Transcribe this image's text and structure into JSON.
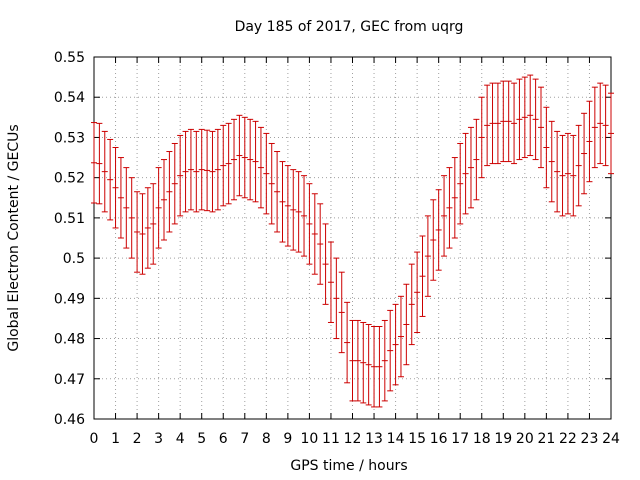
{
  "chart_data": {
    "type": "scatter",
    "title": "Day 185 of 2017, GEC from uqrg",
    "xlabel": "GPS time / hours",
    "ylabel": "Global Electron Content / GECUs",
    "xlim": [
      0,
      24
    ],
    "ylim": [
      0.46,
      0.55
    ],
    "x_ticks": [
      "0",
      "1",
      "2",
      "3",
      "4",
      "5",
      "6",
      "7",
      "8",
      "9",
      "10",
      "11",
      "12",
      "13",
      "14",
      "15",
      "16",
      "17",
      "18",
      "19",
      "20",
      "21",
      "22",
      "23",
      "24"
    ],
    "y_ticks": [
      "0.46",
      "0.47",
      "0.48",
      "0.49",
      "0.5",
      "0.51",
      "0.52",
      "0.53",
      "0.54",
      "0.55"
    ],
    "grid": true,
    "error_bar_halfwidth": 0.01,
    "series_color": "#cc0000",
    "series": [
      {
        "x": [
          0,
          0.25,
          0.5,
          0.75,
          1,
          1.25,
          1.5,
          1.75,
          2,
          2.25,
          2.5,
          2.75,
          3,
          3.25,
          3.5,
          3.75,
          4,
          4.25,
          4.5,
          4.75,
          5,
          5.25,
          5.5,
          5.75,
          6,
          6.25,
          6.5,
          6.75,
          7,
          7.25,
          7.5,
          7.75,
          8,
          8.25,
          8.5,
          8.75,
          9,
          9.25,
          9.5,
          9.75,
          10,
          10.25,
          10.5,
          10.75,
          11,
          11.25,
          11.5,
          11.75,
          12,
          12.25,
          12.5,
          12.75,
          13,
          13.25,
          13.5,
          13.75,
          14,
          14.25,
          14.5,
          14.75,
          15,
          15.25,
          15.5,
          15.75,
          16,
          16.25,
          16.5,
          16.75,
          17,
          17.25,
          17.5,
          17.75,
          18,
          18.25,
          18.5,
          18.75,
          19,
          19.25,
          19.5,
          19.75,
          20,
          20.25,
          20.5,
          20.75,
          21,
          21.25,
          21.5,
          21.75,
          22,
          22.25,
          22.5,
          22.75,
          23,
          23.25,
          23.5,
          23.75,
          24
        ],
        "y": [
          0.5237,
          0.5235,
          0.5215,
          0.5195,
          0.5175,
          0.515,
          0.5125,
          0.51,
          0.5065,
          0.506,
          0.5075,
          0.5085,
          0.5125,
          0.5145,
          0.5165,
          0.5185,
          0.5205,
          0.5215,
          0.522,
          0.5215,
          0.522,
          0.5218,
          0.5215,
          0.522,
          0.523,
          0.5235,
          0.5245,
          0.5255,
          0.525,
          0.5245,
          0.524,
          0.5225,
          0.521,
          0.5185,
          0.5165,
          0.514,
          0.513,
          0.512,
          0.5115,
          0.5105,
          0.5085,
          0.506,
          0.5035,
          0.4985,
          0.494,
          0.49,
          0.4865,
          0.479,
          0.4745,
          0.4745,
          0.474,
          0.4735,
          0.473,
          0.473,
          0.4745,
          0.477,
          0.4785,
          0.4805,
          0.4835,
          0.4885,
          0.4915,
          0.4955,
          0.5005,
          0.5045,
          0.507,
          0.5105,
          0.5125,
          0.515,
          0.5185,
          0.521,
          0.5225,
          0.5245,
          0.53,
          0.533,
          0.5335,
          0.5335,
          0.534,
          0.534,
          0.5335,
          0.5345,
          0.535,
          0.5355,
          0.5345,
          0.5325,
          0.5275,
          0.524,
          0.5215,
          0.5205,
          0.521,
          0.5205,
          0.523,
          0.526,
          0.529,
          0.5325,
          0.5335,
          0.533,
          0.531
        ]
      }
    ]
  }
}
